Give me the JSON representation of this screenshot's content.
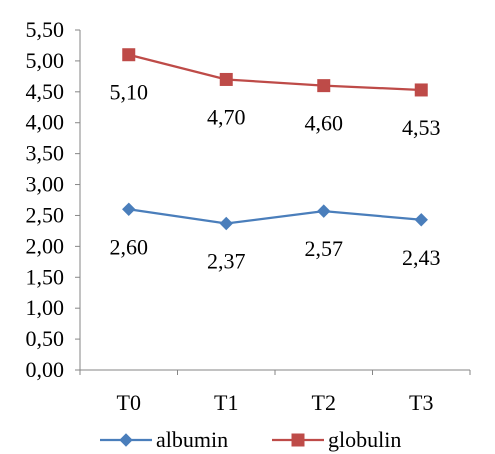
{
  "chart_data": {
    "type": "line",
    "categories": [
      "T0",
      "T1",
      "T2",
      "T3"
    ],
    "series": [
      {
        "name": "albumin",
        "values": [
          2.6,
          2.37,
          2.57,
          2.43
        ],
        "labels": [
          "2,60",
          "2,37",
          "2,57",
          "2,43"
        ],
        "color": "#4A7EBB",
        "marker": "diamond"
      },
      {
        "name": "globulin",
        "values": [
          5.1,
          4.7,
          4.6,
          4.53
        ],
        "labels": [
          "5,10",
          "4,70",
          "4,60",
          "4,53"
        ],
        "color": "#BE4B48",
        "marker": "square"
      }
    ],
    "y_ticks": [
      "0,00",
      "0,50",
      "1,00",
      "1,50",
      "2,00",
      "2,50",
      "3,00",
      "3,50",
      "4,00",
      "4,50",
      "5,00",
      "5,50"
    ],
    "ylim": [
      0,
      5.5
    ],
    "y_step": 0.5,
    "grid": false,
    "legend_position": "bottom"
  }
}
